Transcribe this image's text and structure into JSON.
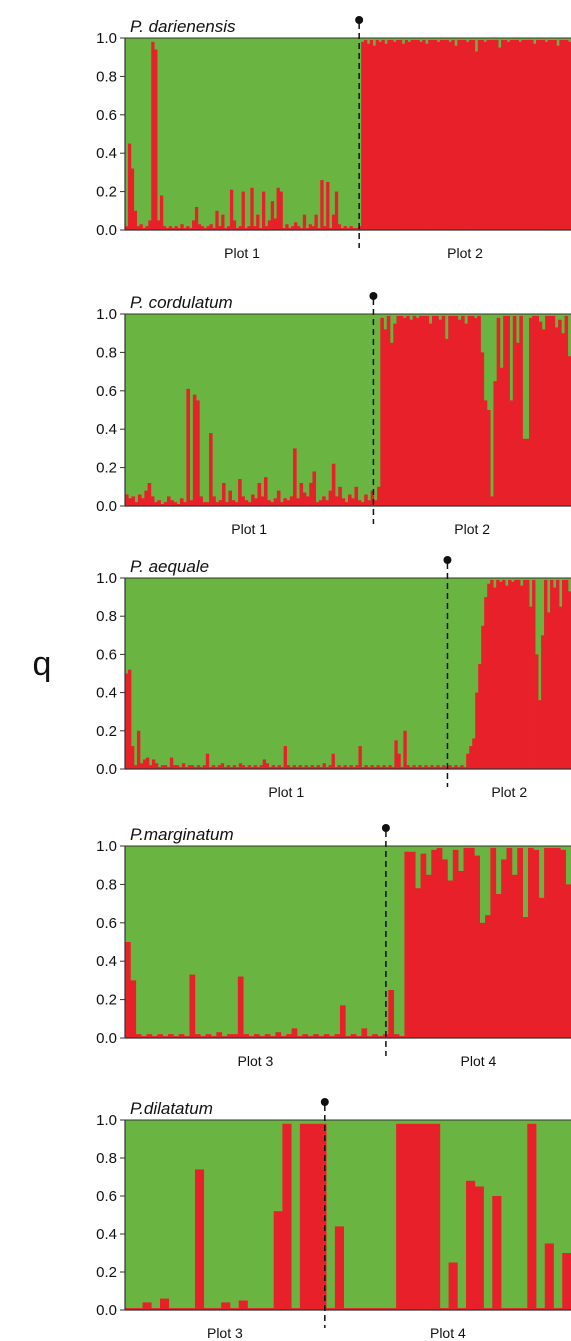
{
  "figure": {
    "ylabel": "q"
  },
  "colors": {
    "cluster_a": "#6ab441",
    "cluster_b": "#e8202a",
    "axis": "#333333"
  },
  "chart_data": [
    {
      "type": "bar",
      "subtype": "stacked-admixture",
      "title": "P. darienensis",
      "ylim": [
        0,
        1
      ],
      "yticks": [
        "0.0",
        "0.2",
        "0.4",
        "0.6",
        "0.8",
        "1.0"
      ],
      "groups": [
        "Plot 1",
        "Plot 2"
      ],
      "split_fraction": 0.525,
      "series": [
        {
          "values": [
            0.02,
            0.45,
            0.32,
            0.1,
            0.02,
            0.03,
            0.01,
            0.02,
            0.05,
            0.98,
            0.94,
            0.05,
            0.18,
            0.02,
            0.01,
            0.02,
            0.01,
            0.02,
            0.01,
            0.03,
            0.01,
            0.02,
            0.01,
            0.05,
            0.12,
            0.03,
            0.02,
            0.01,
            0.02,
            0.03,
            0.01,
            0.1,
            0.02,
            0.08,
            0.01,
            0.02,
            0.21,
            0.05,
            0.01,
            0.02,
            0.2,
            0.01,
            0.02,
            0.22,
            0.02,
            0.08,
            0.01,
            0.2,
            0.02,
            0.05,
            0.15,
            0.06,
            0.22,
            0.2,
            0.01,
            0.03,
            0.01,
            0.02,
            0.04,
            0.02,
            0.01,
            0.08,
            0.01,
            0.03,
            0.02,
            0.08,
            0.01,
            0.26,
            0.02,
            0.25,
            0.01,
            0.08,
            0.2,
            0.03,
            0.01,
            0.02,
            0.01,
            0.02,
            0.01,
            0.01,
            0.02,
            0.98,
            0.99,
            0.97,
            0.99,
            0.96,
            0.99,
            0.98,
            0.99,
            0.97,
            0.99,
            0.99,
            0.98,
            0.99,
            0.99,
            0.97,
            0.99,
            0.98,
            0.99,
            0.99,
            0.99,
            0.98,
            0.99,
            0.97,
            0.99,
            0.99,
            0.99,
            0.98,
            0.99,
            0.99,
            0.99,
            0.98,
            0.99,
            0.96,
            0.99,
            0.99,
            0.99,
            0.98,
            0.99,
            0.99,
            0.93,
            0.99,
            0.99,
            0.98,
            0.99,
            0.99,
            0.99,
            0.99,
            0.95,
            0.99,
            0.99,
            0.98,
            0.99,
            0.99,
            0.99,
            0.98,
            0.99,
            0.99,
            0.99,
            0.99,
            0.97,
            0.99,
            0.99,
            0.99,
            0.98,
            0.99,
            0.99,
            0.99,
            0.96,
            0.99,
            0.99,
            0.99,
            0.98
          ]
        }
      ]
    },
    {
      "type": "bar",
      "subtype": "stacked-admixture",
      "title": "P. cordulatum",
      "ylim": [
        0,
        1
      ],
      "yticks": [
        "0.0",
        "0.2",
        "0.4",
        "0.6",
        "0.8",
        "1.0"
      ],
      "groups": [
        "Plot 1",
        "Plot 2"
      ],
      "split_fraction": 0.557,
      "series": [
        {
          "values": [
            0.06,
            0.04,
            0.05,
            0.02,
            0.06,
            0.04,
            0.08,
            0.12,
            0.05,
            0.02,
            0.03,
            0.01,
            0.02,
            0.05,
            0.03,
            0.02,
            0.01,
            0.04,
            0.02,
            0.61,
            0.03,
            0.58,
            0.55,
            0.05,
            0.02,
            0.02,
            0.38,
            0.05,
            0.02,
            0.03,
            0.12,
            0.02,
            0.08,
            0.03,
            0.02,
            0.14,
            0.05,
            0.03,
            0.02,
            0.06,
            0.04,
            0.12,
            0.05,
            0.15,
            0.03,
            0.02,
            0.04,
            0.08,
            0.02,
            0.04,
            0.03,
            0.05,
            0.3,
            0.04,
            0.12,
            0.07,
            0.05,
            0.12,
            0.18,
            0.02,
            0.03,
            0.05,
            0.03,
            0.08,
            0.22,
            0.05,
            0.1,
            0.04,
            0.02,
            0.06,
            0.04,
            0.1,
            0.03,
            0.02,
            0.06,
            0.03,
            0.08,
            0.03,
            0.1,
            0.98,
            0.92,
            0.99,
            0.85,
            0.95,
            0.99,
            0.99,
            0.98,
            0.99,
            0.97,
            0.99,
            0.98,
            0.99,
            0.99,
            0.99,
            0.95,
            0.99,
            0.99,
            0.97,
            0.99,
            0.87,
            0.99,
            0.99,
            0.99,
            0.97,
            0.99,
            0.95,
            0.99,
            0.99,
            0.98,
            0.99,
            0.8,
            0.55,
            0.5,
            0.05,
            0.65,
            0.98,
            0.72,
            0.99,
            0.99,
            0.55,
            0.99,
            0.85,
            0.99,
            0.35,
            0.35,
            0.98,
            0.99,
            0.99,
            0.96,
            0.92,
            0.99,
            0.99,
            0.99,
            0.93,
            0.97,
            0.9,
            0.99,
            0.78
          ]
        }
      ]
    },
    {
      "type": "bar",
      "subtype": "stacked-admixture",
      "title": "P. aequale",
      "ylim": [
        0,
        1
      ],
      "yticks": [
        "0.0",
        "0.2",
        "0.4",
        "0.6",
        "0.8",
        "1.0"
      ],
      "groups": [
        "Plot 1",
        "Plot 2"
      ],
      "split_fraction": 0.723,
      "series": [
        {
          "values": [
            0.5,
            0.52,
            0.12,
            0.02,
            0.2,
            0.03,
            0.05,
            0.06,
            0.02,
            0.05,
            0.03,
            0.01,
            0.02,
            0.02,
            0.01,
            0.06,
            0.02,
            0.02,
            0.01,
            0.03,
            0.01,
            0.02,
            0.02,
            0.01,
            0.02,
            0.01,
            0.02,
            0.08,
            0.01,
            0.02,
            0.01,
            0.02,
            0.03,
            0.01,
            0.02,
            0.01,
            0.02,
            0.01,
            0.03,
            0.02,
            0.01,
            0.02,
            0.01,
            0.02,
            0.01,
            0.02,
            0.05,
            0.03,
            0.01,
            0.02,
            0.01,
            0.02,
            0.01,
            0.12,
            0.02,
            0.01,
            0.02,
            0.01,
            0.02,
            0.01,
            0.02,
            0.01,
            0.02,
            0.01,
            0.02,
            0.01,
            0.03,
            0.01,
            0.02,
            0.08,
            0.01,
            0.02,
            0.01,
            0.02,
            0.01,
            0.02,
            0.01,
            0.02,
            0.12,
            0.01,
            0.02,
            0.01,
            0.02,
            0.01,
            0.02,
            0.01,
            0.02,
            0.01,
            0.02,
            0.01,
            0.15,
            0.08,
            0.01,
            0.2,
            0.02,
            0.01,
            0.02,
            0.01,
            0.02,
            0.01,
            0.02,
            0.01,
            0.02,
            0.01,
            0.02,
            0.01,
            0.02,
            0.01,
            0.02,
            0.01,
            0.02,
            0.01,
            0.02,
            0.01,
            0.08,
            0.12,
            0.16,
            0.4,
            0.55,
            0.75,
            0.9,
            0.97,
            0.99,
            0.95,
            0.99,
            0.98,
            0.99,
            0.96,
            0.99,
            0.98,
            0.99,
            0.99,
            0.96,
            0.99,
            0.99,
            0.85,
            0.99,
            0.6,
            0.36,
            0.7,
            0.99,
            0.82,
            0.99,
            0.95,
            0.99,
            0.85,
            0.99,
            0.99,
            0.93
          ]
        }
      ]
    },
    {
      "type": "bar",
      "subtype": "stacked-admixture",
      "title": "P.marginatum",
      "ylim": [
        0,
        1
      ],
      "yticks": [
        "0.0",
        "0.2",
        "0.4",
        "0.6",
        "0.8",
        "1.0"
      ],
      "groups": [
        "Plot 3",
        "Plot 4"
      ],
      "split_fraction": 0.585,
      "series": [
        {
          "values": [
            0.5,
            0.3,
            0.02,
            0.01,
            0.02,
            0.01,
            0.02,
            0.01,
            0.02,
            0.01,
            0.02,
            0.01,
            0.33,
            0.02,
            0.01,
            0.02,
            0.01,
            0.03,
            0.01,
            0.02,
            0.02,
            0.32,
            0.02,
            0.01,
            0.02,
            0.01,
            0.02,
            0.01,
            0.03,
            0.01,
            0.02,
            0.05,
            0.01,
            0.02,
            0.01,
            0.02,
            0.01,
            0.02,
            0.01,
            0.02,
            0.17,
            0.01,
            0.02,
            0.01,
            0.05,
            0.01,
            0.02,
            0.01,
            0.02,
            0.25,
            0.02,
            0.01,
            0.97,
            0.97,
            0.78,
            0.96,
            0.85,
            0.98,
            0.99,
            0.93,
            0.82,
            0.98,
            0.87,
            0.99,
            0.99,
            0.95,
            0.6,
            0.64,
            0.99,
            0.75,
            0.93,
            0.99,
            0.85,
            0.99,
            0.63,
            0.99,
            0.98,
            0.73,
            0.99,
            0.99,
            0.99,
            0.98,
            0.8
          ]
        }
      ]
    },
    {
      "type": "bar",
      "subtype": "stacked-admixture",
      "title": "P.dilatatum",
      "ylim": [
        0,
        1
      ],
      "yticks": [
        "0.0",
        "0.2",
        "0.4",
        "0.6",
        "0.8",
        "1.0"
      ],
      "groups": [
        "Plot 3",
        "Plot 4"
      ],
      "split_fraction": 0.448,
      "series": [
        {
          "values": [
            0.01,
            0.01,
            0.04,
            0.01,
            0.06,
            0.01,
            0.01,
            0.01,
            0.74,
            0.01,
            0.01,
            0.04,
            0.01,
            0.05,
            0.01,
            0.01,
            0.01,
            0.52,
            0.98,
            0.01,
            0.98,
            0.98,
            0.98,
            0.01,
            0.44,
            0.01,
            0.01,
            0.01,
            0.01,
            0.01,
            0.01,
            0.98,
            0.98,
            0.98,
            0.98,
            0.98,
            0.01,
            0.25,
            0.01,
            0.68,
            0.65,
            0.01,
            0.6,
            0.01,
            0.01,
            0.01,
            0.98,
            0.01,
            0.35,
            0.01,
            0.3
          ]
        }
      ]
    }
  ]
}
